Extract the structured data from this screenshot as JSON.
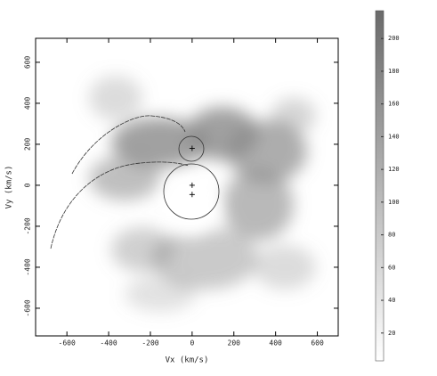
{
  "chart_data": {
    "type": "image",
    "x_label": "Vx (km/s)",
    "y_label": "Vy (km/s)",
    "xlim": [
      -750,
      700
    ],
    "ylim": [
      -735,
      717
    ],
    "xticks": [
      -600,
      -400,
      -200,
      0,
      200,
      400,
      600
    ],
    "yticks": [
      -600,
      -400,
      -200,
      0,
      200,
      400,
      600
    ],
    "clim": [
      3,
      217
    ],
    "cticks": [
      20,
      40,
      60,
      80,
      100,
      120,
      140,
      160,
      180,
      200
    ],
    "markers": {
      "x": [
        0,
        0,
        0
      ],
      "y": [
        180,
        0,
        -45
      ]
    }
  }
}
